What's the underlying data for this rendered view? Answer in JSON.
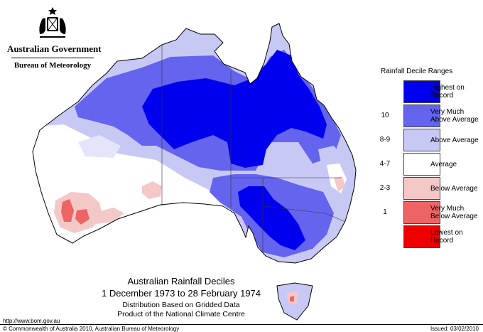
{
  "header": {
    "government": "Australian Government",
    "bureau": "Bureau of Meteorology"
  },
  "map": {
    "region": "Australia",
    "colors": {
      "highest_on_record": "#0000ee",
      "very_much_above": "#6464ee",
      "above_average": "#c8c8f5",
      "average": "#ffffff",
      "below_average": "#f5c8c8",
      "very_much_below": "#ee6464",
      "lowest_on_record": "#ee0000",
      "boundary": "#000000"
    }
  },
  "legend": {
    "title": "Rainfall Decile Ranges",
    "items": [
      {
        "decile": "",
        "label_1": "Highest on",
        "label_2": "Record",
        "color": "#0000ee"
      },
      {
        "decile": "10",
        "label_1": "Very Much",
        "label_2": "Above Average",
        "color": "#6464ee"
      },
      {
        "decile": "8-9",
        "label_1": "Above Average",
        "label_2": "",
        "color": "#c8c8f5"
      },
      {
        "decile": "4-7",
        "label_1": "Average",
        "label_2": "",
        "color": "#ffffff"
      },
      {
        "decile": "2-3",
        "label_1": "Below Average",
        "label_2": "",
        "color": "#f5c8c8"
      },
      {
        "decile": "1",
        "label_1": "Very Much",
        "label_2": "Below Average",
        "color": "#ee6464"
      },
      {
        "decile": "",
        "label_1": "Lowest on",
        "label_2": "Record",
        "color": "#ee0000"
      }
    ]
  },
  "caption": {
    "title": "Australian Rainfall Deciles",
    "dates": "1 December 1973 to 28 February 1974",
    "line1": "Distribution Based on Gridded Data",
    "line2": "Product of the National Climate Centre"
  },
  "footer": {
    "url": "http://www.bom.gov.au",
    "copyright": "© Commonwealth of Australia 2010, Australian Bureau of Meteorology",
    "issued": "Issued: 03/02/2010"
  }
}
